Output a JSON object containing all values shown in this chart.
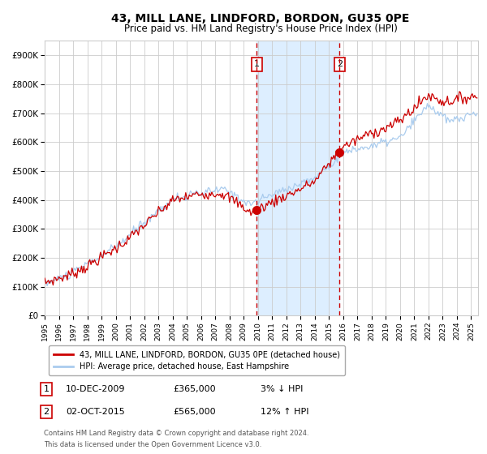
{
  "title": "43, MILL LANE, LINDFORD, BORDON, GU35 0PE",
  "subtitle": "Price paid vs. HM Land Registry's House Price Index (HPI)",
  "red_label": "43, MILL LANE, LINDFORD, BORDON, GU35 0PE (detached house)",
  "blue_label": "HPI: Average price, detached house, East Hampshire",
  "transaction1_date": "10-DEC-2009",
  "transaction1_price": 365000,
  "transaction1_pct": "3% ↓ HPI",
  "transaction2_date": "02-OCT-2015",
  "transaction2_price": 565000,
  "transaction2_pct": "12% ↑ HPI",
  "shade_start_year": 2009.92,
  "shade_end_year": 2015.75,
  "vline1_year": 2009.92,
  "vline2_year": 2015.75,
  "dot1_year": 2009.92,
  "dot1_value": 365000,
  "dot2_year": 2015.75,
  "dot2_value": 565000,
  "ylim": [
    0,
    950000
  ],
  "xlim_start": 1995.0,
  "xlim_end": 2025.5,
  "background_color": "#ffffff",
  "grid_color": "#cccccc",
  "red_color": "#cc0000",
  "blue_color": "#aaccee",
  "shade_color": "#ddeeff",
  "footnote1": "Contains HM Land Registry data © Crown copyright and database right 2024.",
  "footnote2": "This data is licensed under the Open Government Licence v3.0."
}
